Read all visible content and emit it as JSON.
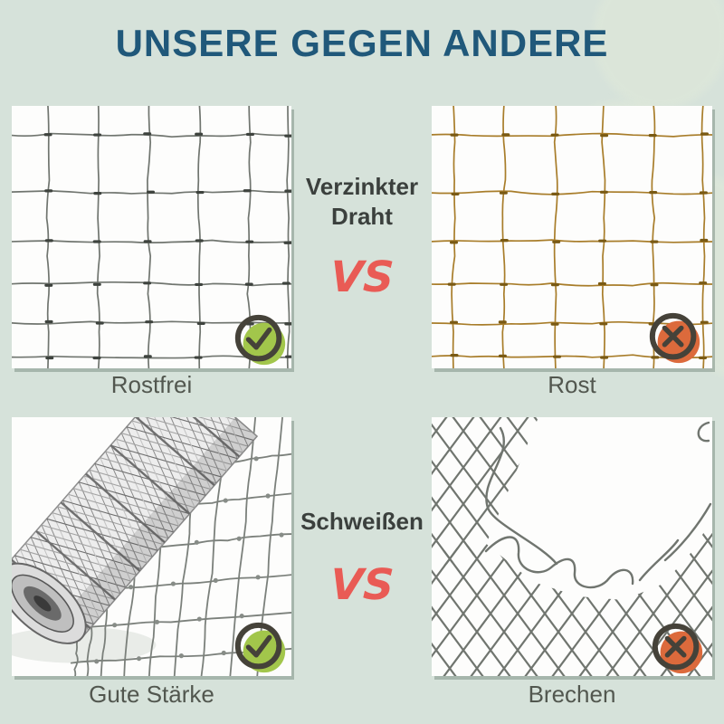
{
  "title": "UNSERE GEGEN ANDERE",
  "comparisons": [
    {
      "feature": "Verzinkter Draht",
      "vs_label": "VS",
      "ours": {
        "label": "Rostfrei",
        "verdict": "check",
        "image": "clean-galvanized-welded-mesh"
      },
      "theirs": {
        "label": "Rost",
        "verdict": "cross",
        "image": "rusty-welded-mesh"
      }
    },
    {
      "feature": "Schweißen",
      "vs_label": "VS",
      "ours": {
        "label": "Gute Stärke",
        "verdict": "check",
        "image": "wire-mesh-roll"
      },
      "theirs": {
        "label": "Brechen",
        "verdict": "cross",
        "image": "broken-chain-link-mesh"
      }
    }
  ],
  "colors": {
    "background": "#d6e2da",
    "title_blue": "#20587a",
    "text_dark": "#3b403d",
    "label_gray": "#52574f",
    "vs_red": "#e95b55",
    "check_green": "#a2c64b",
    "cross_orange": "#dc6a3c",
    "badge_ring": "#454239",
    "mesh_gray": "#70756f",
    "mesh_rust": "#a87d2a",
    "panel_white": "#fdfdfc"
  }
}
